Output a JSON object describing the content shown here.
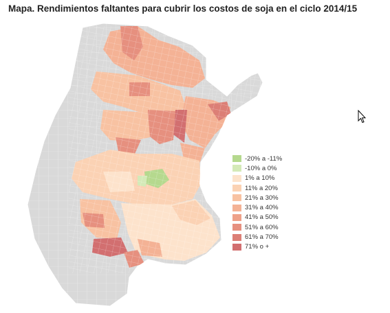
{
  "title": "Mapa. Rendimientos faltantes para cubrir los costos de soja en el ciclo 2014/15",
  "map": {
    "base_color": "#d9d9d9",
    "boundary_color": "#ffffff",
    "legend": [
      {
        "label": "-20% a -11%",
        "color": "#b5d98e"
      },
      {
        "label": "-10% a 0%",
        "color": "#d4eab8"
      },
      {
        "label": "1% a 10%",
        "color": "#fde3cc"
      },
      {
        "label": "11% a 20%",
        "color": "#fbd2b4"
      },
      {
        "label": "21% a 30%",
        "color": "#f8c2a2"
      },
      {
        "label": "31% a 40%",
        "color": "#f4b295"
      },
      {
        "label": "41% a 50%",
        "color": "#eea189"
      },
      {
        "label": "51% a 60%",
        "color": "#e6907f"
      },
      {
        "label": "61% a 70%",
        "color": "#dc7f76"
      },
      {
        "label": "71% o +",
        "color": "#d26f70"
      }
    ]
  },
  "icons": {
    "cursor": "mouse-pointer-icon"
  }
}
